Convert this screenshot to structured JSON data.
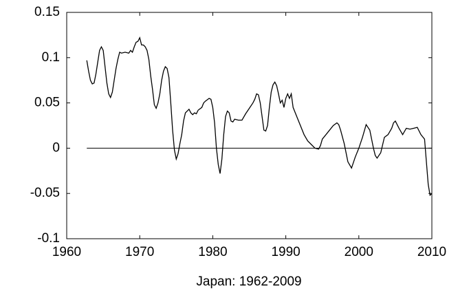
{
  "chart_data": {
    "type": "line",
    "xlabel": "Japan: 1962-2009",
    "x": [
      1962.75,
      1963,
      1963.25,
      1963.5,
      1963.75,
      1964,
      1964.25,
      1964.5,
      1964.75,
      1965,
      1965.25,
      1965.5,
      1965.75,
      1966,
      1966.25,
      1966.5,
      1966.75,
      1967,
      1967.25,
      1967.5,
      1968,
      1968.5,
      1968.75,
      1969,
      1969.25,
      1969.5,
      1969.75,
      1970,
      1970.25,
      1970.5,
      1970.75,
      1971,
      1971.25,
      1971.5,
      1971.75,
      1972,
      1972.25,
      1972.5,
      1972.75,
      1973,
      1973.25,
      1973.5,
      1973.75,
      1974,
      1974.25,
      1974.5,
      1974.75,
      1975,
      1975.25,
      1975.5,
      1975.75,
      1976,
      1976.25,
      1976.5,
      1976.75,
      1977,
      1977.25,
      1977.5,
      1977.75,
      1978,
      1978.5,
      1978.75,
      1979,
      1979.5,
      1979.75,
      1980,
      1980.25,
      1980.5,
      1980.75,
      1981,
      1981.25,
      1981.5,
      1981.75,
      1982,
      1982.25,
      1982.5,
      1982.75,
      1983,
      1983.5,
      1984,
      1984.5,
      1985,
      1985.5,
      1985.75,
      1986,
      1986.25,
      1986.5,
      1986.75,
      1987,
      1987.25,
      1987.5,
      1987.75,
      1988,
      1988.25,
      1988.5,
      1988.75,
      1989,
      1989.25,
      1989.5,
      1989.75,
      1990,
      1990.25,
      1990.5,
      1990.75,
      1991,
      1991.5,
      1992,
      1992.5,
      1993,
      1993.5,
      1994,
      1994.5,
      1994.75,
      1995,
      1995.5,
      1996,
      1996.5,
      1997,
      1997.25,
      1997.5,
      1998,
      1998.5,
      1999,
      1999.5,
      2000,
      2000.5,
      2001,
      2001.5,
      2002,
      2002.25,
      2002.5,
      2003,
      2003.5,
      2004,
      2004.5,
      2004.75,
      2005,
      2005.5,
      2006,
      2006.5,
      2007,
      2007.5,
      2008,
      2008.5,
      2009,
      2009.25,
      2009.5,
      2009.75,
      2010
    ],
    "values": [
      0.097,
      0.085,
      0.075,
      0.071,
      0.072,
      0.082,
      0.095,
      0.108,
      0.112,
      0.108,
      0.09,
      0.072,
      0.06,
      0.056,
      0.062,
      0.075,
      0.088,
      0.098,
      0.106,
      0.105,
      0.106,
      0.105,
      0.108,
      0.106,
      0.112,
      0.117,
      0.118,
      0.122,
      0.114,
      0.114,
      0.112,
      0.108,
      0.098,
      0.08,
      0.065,
      0.048,
      0.044,
      0.05,
      0.06,
      0.075,
      0.085,
      0.09,
      0.088,
      0.078,
      0.05,
      0.02,
      -0.002,
      -0.012,
      -0.006,
      0.005,
      0.015,
      0.03,
      0.039,
      0.041,
      0.043,
      0.039,
      0.037,
      0.039,
      0.038,
      0.042,
      0.045,
      0.05,
      0.052,
      0.055,
      0.054,
      0.045,
      0.028,
      0.0,
      -0.018,
      -0.028,
      -0.012,
      0.015,
      0.035,
      0.041,
      0.039,
      0.03,
      0.029,
      0.032,
      0.031,
      0.031,
      0.038,
      0.044,
      0.05,
      0.054,
      0.06,
      0.059,
      0.05,
      0.035,
      0.02,
      0.019,
      0.025,
      0.045,
      0.062,
      0.07,
      0.073,
      0.069,
      0.06,
      0.05,
      0.053,
      0.045,
      0.055,
      0.06,
      0.055,
      0.06,
      0.045,
      0.035,
      0.025,
      0.015,
      0.008,
      0.004,
      0.0,
      -0.001,
      0.003,
      0.01,
      0.015,
      0.02,
      0.025,
      0.028,
      0.026,
      0.02,
      0.005,
      -0.015,
      -0.022,
      -0.01,
      0.0,
      0.012,
      0.026,
      0.02,
      0.0,
      -0.008,
      -0.011,
      -0.005,
      0.012,
      0.015,
      0.022,
      0.028,
      0.03,
      0.022,
      0.015,
      0.022,
      0.021,
      0.022,
      0.023,
      0.015,
      0.01,
      -0.015,
      -0.04,
      -0.052,
      -0.05
    ],
    "color": "#000000",
    "zero_line": true,
    "xlim": [
      1960,
      2010
    ],
    "xticks": [
      1960,
      1970,
      1980,
      1990,
      2000,
      2010
    ],
    "ylim": [
      -0.1,
      0.15
    ],
    "yticks": [
      -0.1,
      -0.05,
      0,
      0.05,
      0.1,
      0.15
    ]
  }
}
